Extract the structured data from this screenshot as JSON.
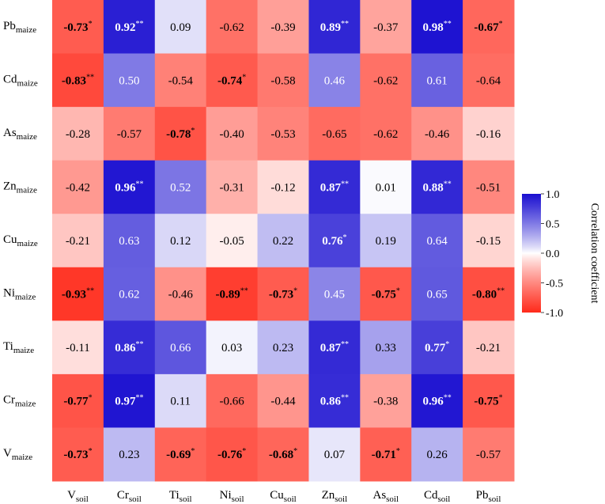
{
  "chart_data": {
    "type": "heatmap",
    "x_labels": [
      {
        "base": "V",
        "sub": "soil"
      },
      {
        "base": "Cr",
        "sub": "soil"
      },
      {
        "base": "Ti",
        "sub": "soil"
      },
      {
        "base": "Ni",
        "sub": "soil"
      },
      {
        "base": "Cu",
        "sub": "soil"
      },
      {
        "base": "Zn",
        "sub": "soil"
      },
      {
        "base": "As",
        "sub": "soil"
      },
      {
        "base": "Cd",
        "sub": "soil"
      },
      {
        "base": "Pb",
        "sub": "soil"
      }
    ],
    "y_labels": [
      {
        "base": "Pb",
        "sub": "maize"
      },
      {
        "base": "Cd",
        "sub": "maize"
      },
      {
        "base": "As",
        "sub": "maize"
      },
      {
        "base": "Zn",
        "sub": "maize"
      },
      {
        "base": "Cu",
        "sub": "maize"
      },
      {
        "base": "Ni",
        "sub": "maize"
      },
      {
        "base": "Ti",
        "sub": "maize"
      },
      {
        "base": "Cr",
        "sub": "maize"
      },
      {
        "base": "V",
        "sub": "maize"
      }
    ],
    "values": [
      [
        -0.73,
        0.92,
        0.09,
        -0.62,
        -0.39,
        0.89,
        -0.37,
        0.98,
        -0.67
      ],
      [
        -0.83,
        0.5,
        -0.54,
        -0.74,
        -0.58,
        0.46,
        -0.62,
        0.61,
        -0.64
      ],
      [
        -0.28,
        -0.57,
        -0.78,
        -0.4,
        -0.53,
        -0.65,
        -0.62,
        -0.46,
        -0.16
      ],
      [
        -0.42,
        0.96,
        0.52,
        -0.31,
        -0.12,
        0.87,
        0.01,
        0.88,
        -0.51
      ],
      [
        -0.21,
        0.63,
        0.12,
        -0.05,
        0.22,
        0.76,
        0.19,
        0.64,
        -0.15
      ],
      [
        -0.93,
        0.62,
        -0.46,
        -0.89,
        -0.73,
        0.45,
        -0.75,
        0.65,
        -0.8
      ],
      [
        -0.11,
        0.86,
        0.66,
        0.03,
        0.23,
        0.87,
        0.33,
        0.77,
        -0.21
      ],
      [
        -0.77,
        0.97,
        0.11,
        -0.66,
        -0.44,
        0.86,
        -0.38,
        0.96,
        -0.75
      ],
      [
        -0.73,
        0.23,
        -0.69,
        -0.76,
        -0.68,
        0.07,
        -0.71,
        0.26,
        -0.57
      ]
    ],
    "labels": [
      [
        "-0.73",
        "0.92",
        "0.09",
        "-0.62",
        "-0.39",
        "0.89",
        "-0.37",
        "0.98",
        "-0.67"
      ],
      [
        "-0.83",
        "0.50",
        "-0.54",
        "-0.74",
        "-0.58",
        "0.46",
        "-0.62",
        "0.61",
        "-0.64"
      ],
      [
        "-0.28",
        "-0.57",
        "-0.78",
        "-0.40",
        "-0.53",
        "-0.65",
        "-0.62",
        "-0.46",
        "-0.16"
      ],
      [
        "-0.42",
        "0.96",
        "0.52",
        "-0.31",
        "-0.12",
        "0.87",
        "0.01",
        "0.88",
        "-0.51"
      ],
      [
        "-0.21",
        "0.63",
        "0.12",
        "-0.05",
        "0.22",
        "0.76",
        "0.19",
        "0.64",
        "-0.15"
      ],
      [
        "-0.93",
        "0.62",
        "-0.46",
        "-0.89",
        "-0.73",
        "0.45",
        "-0.75",
        "0.65",
        "-0.80"
      ],
      [
        "-0.11",
        "0.86",
        "0.66",
        "0.03",
        "0.23",
        "0.87",
        "0.33",
        "0.77",
        "-0.21"
      ],
      [
        "-0.77",
        "0.97",
        "0.11",
        "-0.66",
        "-0.44",
        "0.86",
        "-0.38",
        "0.96",
        "-0.75"
      ],
      [
        "-0.73",
        "0.23",
        "-0.69",
        "-0.76",
        "-0.68",
        "0.07",
        "-0.71",
        "0.26",
        "-0.57"
      ]
    ],
    "significance": [
      [
        "*",
        "**",
        "",
        "",
        "",
        "**",
        "",
        "**",
        "*"
      ],
      [
        "**",
        "",
        "",
        "*",
        "",
        "",
        "",
        "",
        ""
      ],
      [
        "",
        "",
        "*",
        "",
        "",
        "",
        "",
        "",
        ""
      ],
      [
        "",
        "**",
        "",
        "",
        "",
        "**",
        "",
        "**",
        ""
      ],
      [
        "",
        "",
        "",
        "",
        "",
        "*",
        "",
        "",
        ""
      ],
      [
        "**",
        "",
        "",
        "**",
        "*",
        "",
        "*",
        "",
        "**"
      ],
      [
        "",
        "**",
        "",
        "",
        "",
        "**",
        "",
        "*",
        ""
      ],
      [
        "*",
        "**",
        "",
        "",
        "",
        "**",
        "",
        "**",
        "*"
      ],
      [
        "*",
        "",
        "*",
        "*",
        "*",
        "",
        "*",
        "",
        ""
      ]
    ],
    "colorbar": {
      "title": "Correlation coefficient",
      "range": [
        -1.0,
        1.0
      ],
      "ticks": [
        "1.0",
        "0.5",
        "0.0",
        "-0.5",
        "-1.0"
      ],
      "tick_values": [
        1.0,
        0.5,
        0.0,
        -0.5,
        -1.0
      ],
      "colors": {
        "negative": "#ff2a1a",
        "zero": "#ffffff",
        "positive": "#1a0fd0"
      }
    },
    "legend_placement": "right"
  }
}
